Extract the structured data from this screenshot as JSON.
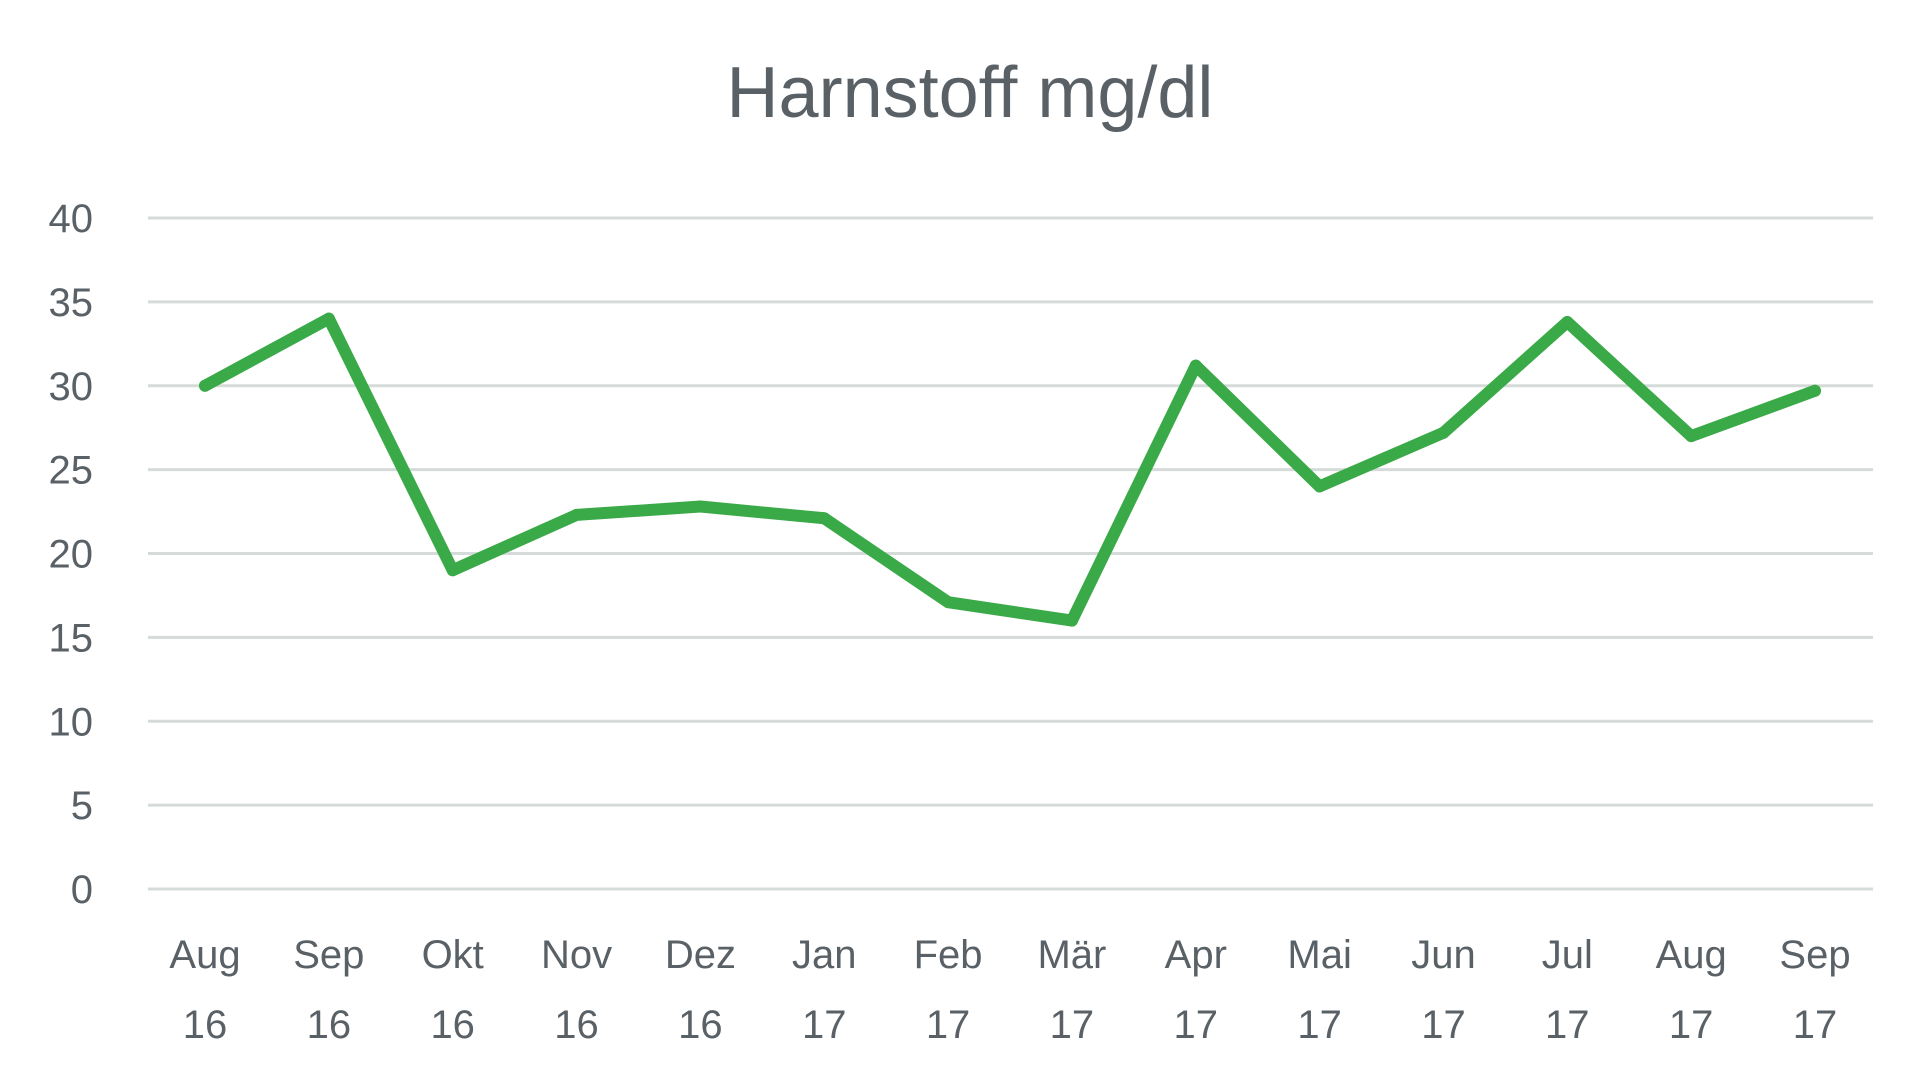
{
  "chart_data": {
    "type": "line",
    "title": "Harnstoff mg/dl",
    "xlabel": "",
    "ylabel": "",
    "categories": [
      [
        "Aug",
        "16"
      ],
      [
        "Sep",
        "16"
      ],
      [
        "Okt",
        "16"
      ],
      [
        "Nov",
        "16"
      ],
      [
        "Dez",
        "16"
      ],
      [
        "Jan",
        "17"
      ],
      [
        "Feb",
        "17"
      ],
      [
        "Mär",
        "17"
      ],
      [
        "Apr",
        "17"
      ],
      [
        "Mai",
        "17"
      ],
      [
        "Jun",
        "17"
      ],
      [
        "Jul",
        "17"
      ],
      [
        "Aug",
        "17"
      ],
      [
        "Sep",
        "17"
      ]
    ],
    "series": [
      {
        "values": [
          30,
          34,
          19,
          22.3,
          22.8,
          22.1,
          17.1,
          16,
          31.2,
          24,
          27.2,
          33.8,
          27,
          29.7
        ],
        "color": "#3aaa48"
      }
    ],
    "ylim": [
      0,
      40
    ],
    "yticks": [
      0,
      5,
      10,
      15,
      20,
      25,
      30,
      35,
      40
    ],
    "grid": true,
    "legend": "none"
  }
}
